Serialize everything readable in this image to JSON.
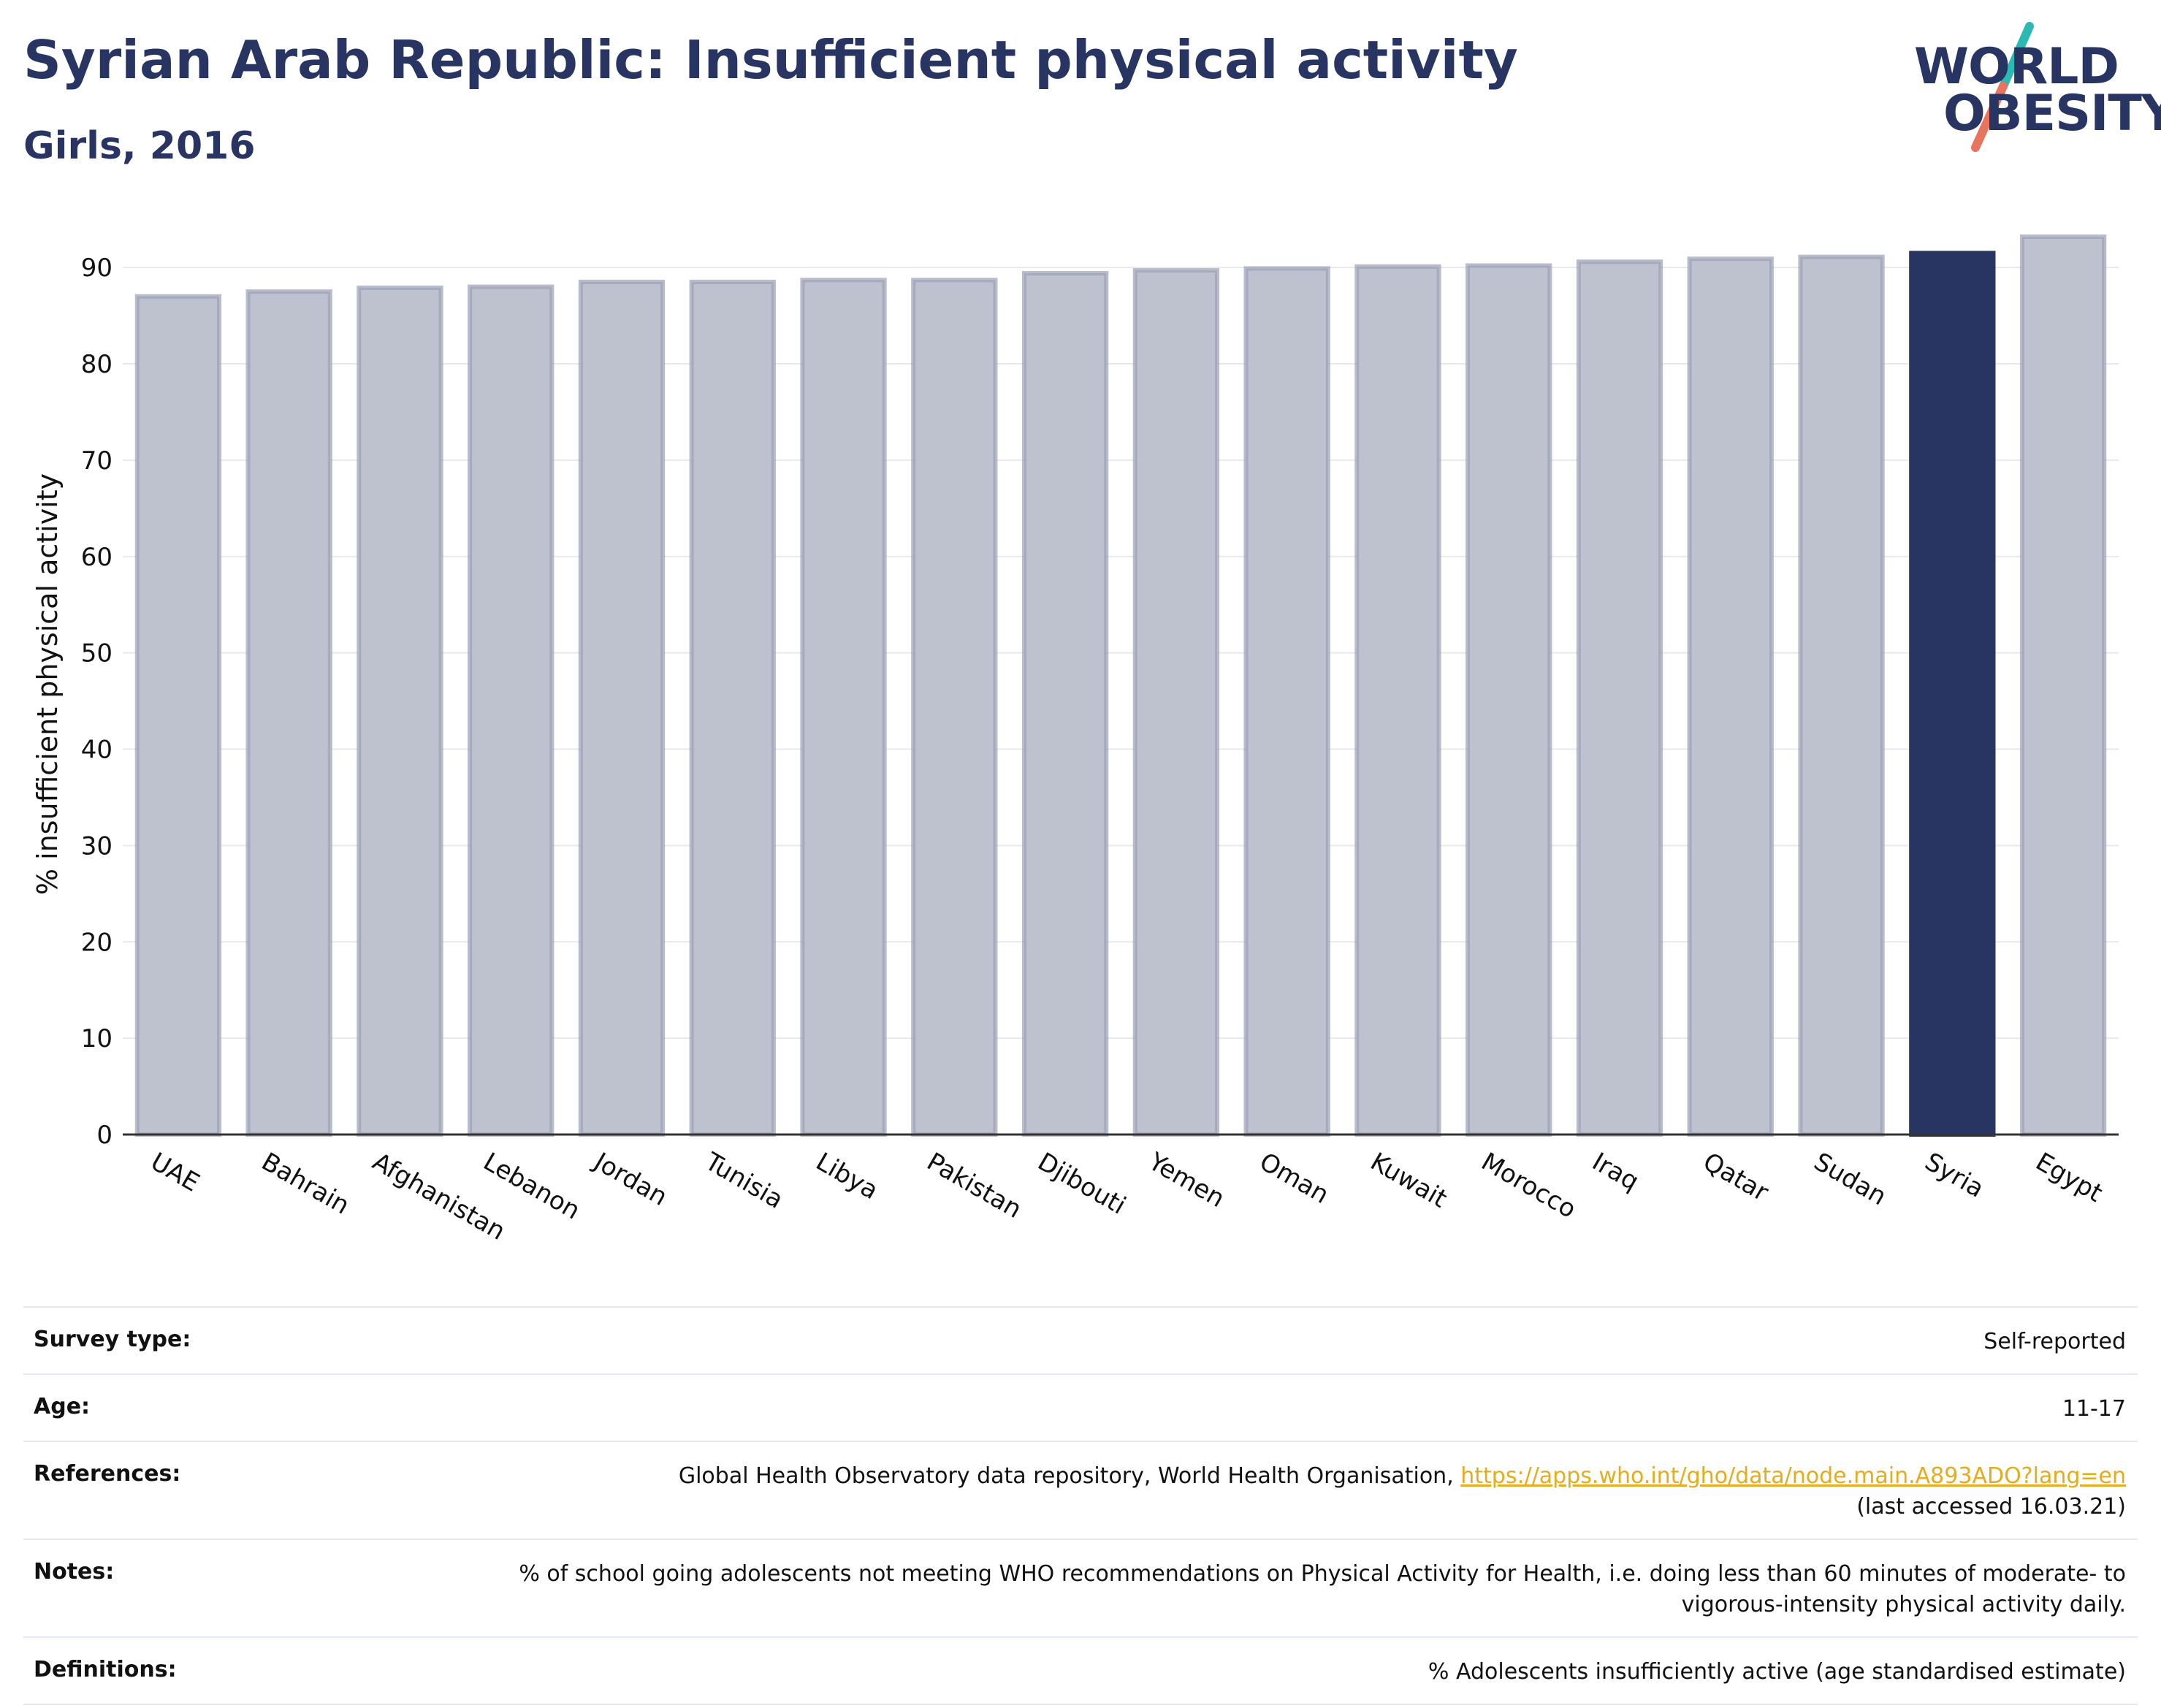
{
  "header": {
    "title": "Syrian Arab Republic: Insufficient physical activity",
    "subtitle": "Girls, 2016"
  },
  "logo": {
    "line1": "WORLD",
    "line2": "OBESITY",
    "colors": {
      "text": "#283462",
      "slash_top": "#2bb9b4",
      "slash_bottom": "#e8745e"
    }
  },
  "chart_data": {
    "type": "bar",
    "ylabel": "% insufficient physical activity",
    "xlabel": "",
    "ylim": [
      0,
      93.5
    ],
    "yticks": [
      0,
      10,
      20,
      30,
      40,
      50,
      60,
      70,
      80,
      90
    ],
    "grid": true,
    "highlight": "Syria",
    "categories": [
      "UAE",
      "Bahrain",
      "Afghanistan",
      "Lebanon",
      "Jordan",
      "Tunisia",
      "Libya",
      "Pakistan",
      "Djibouti",
      "Yemen",
      "Oman",
      "Kuwait",
      "Morocco",
      "Iraq",
      "Qatar",
      "Sudan",
      "Syria",
      "Egypt"
    ],
    "values": [
      87.0,
      87.5,
      87.9,
      88.0,
      88.5,
      88.5,
      88.7,
      88.7,
      89.4,
      89.7,
      89.9,
      90.1,
      90.2,
      90.6,
      90.9,
      91.1,
      91.5,
      93.2
    ],
    "colors": {
      "bar": "#bec1ce",
      "bar_edge": "#9a9fb6",
      "highlight": "#283462",
      "grid": "#e8e9ee",
      "axis": "#333333"
    }
  },
  "meta": {
    "survey_type": {
      "label": "Survey type:",
      "value": "Self-reported"
    },
    "age": {
      "label": "Age:",
      "value": "11-17"
    },
    "references": {
      "label": "References:",
      "text": "Global Health Observatory data repository, World Health Organisation, ",
      "link": "https://apps.who.int/gho/data/node.main.A893ADO?lang=en",
      "accessed": "(last accessed 16.03.21)"
    },
    "notes": {
      "label": "Notes:",
      "value": "% of school going adolescents not meeting WHO recommendations on Physical Activity for Health, i.e. doing less than 60 minutes of moderate- to vigorous-intensity physical activity daily."
    },
    "definitions": {
      "label": "Definitions:",
      "value": "% Adolescents insufficiently active (age standardised estimate)"
    }
  }
}
